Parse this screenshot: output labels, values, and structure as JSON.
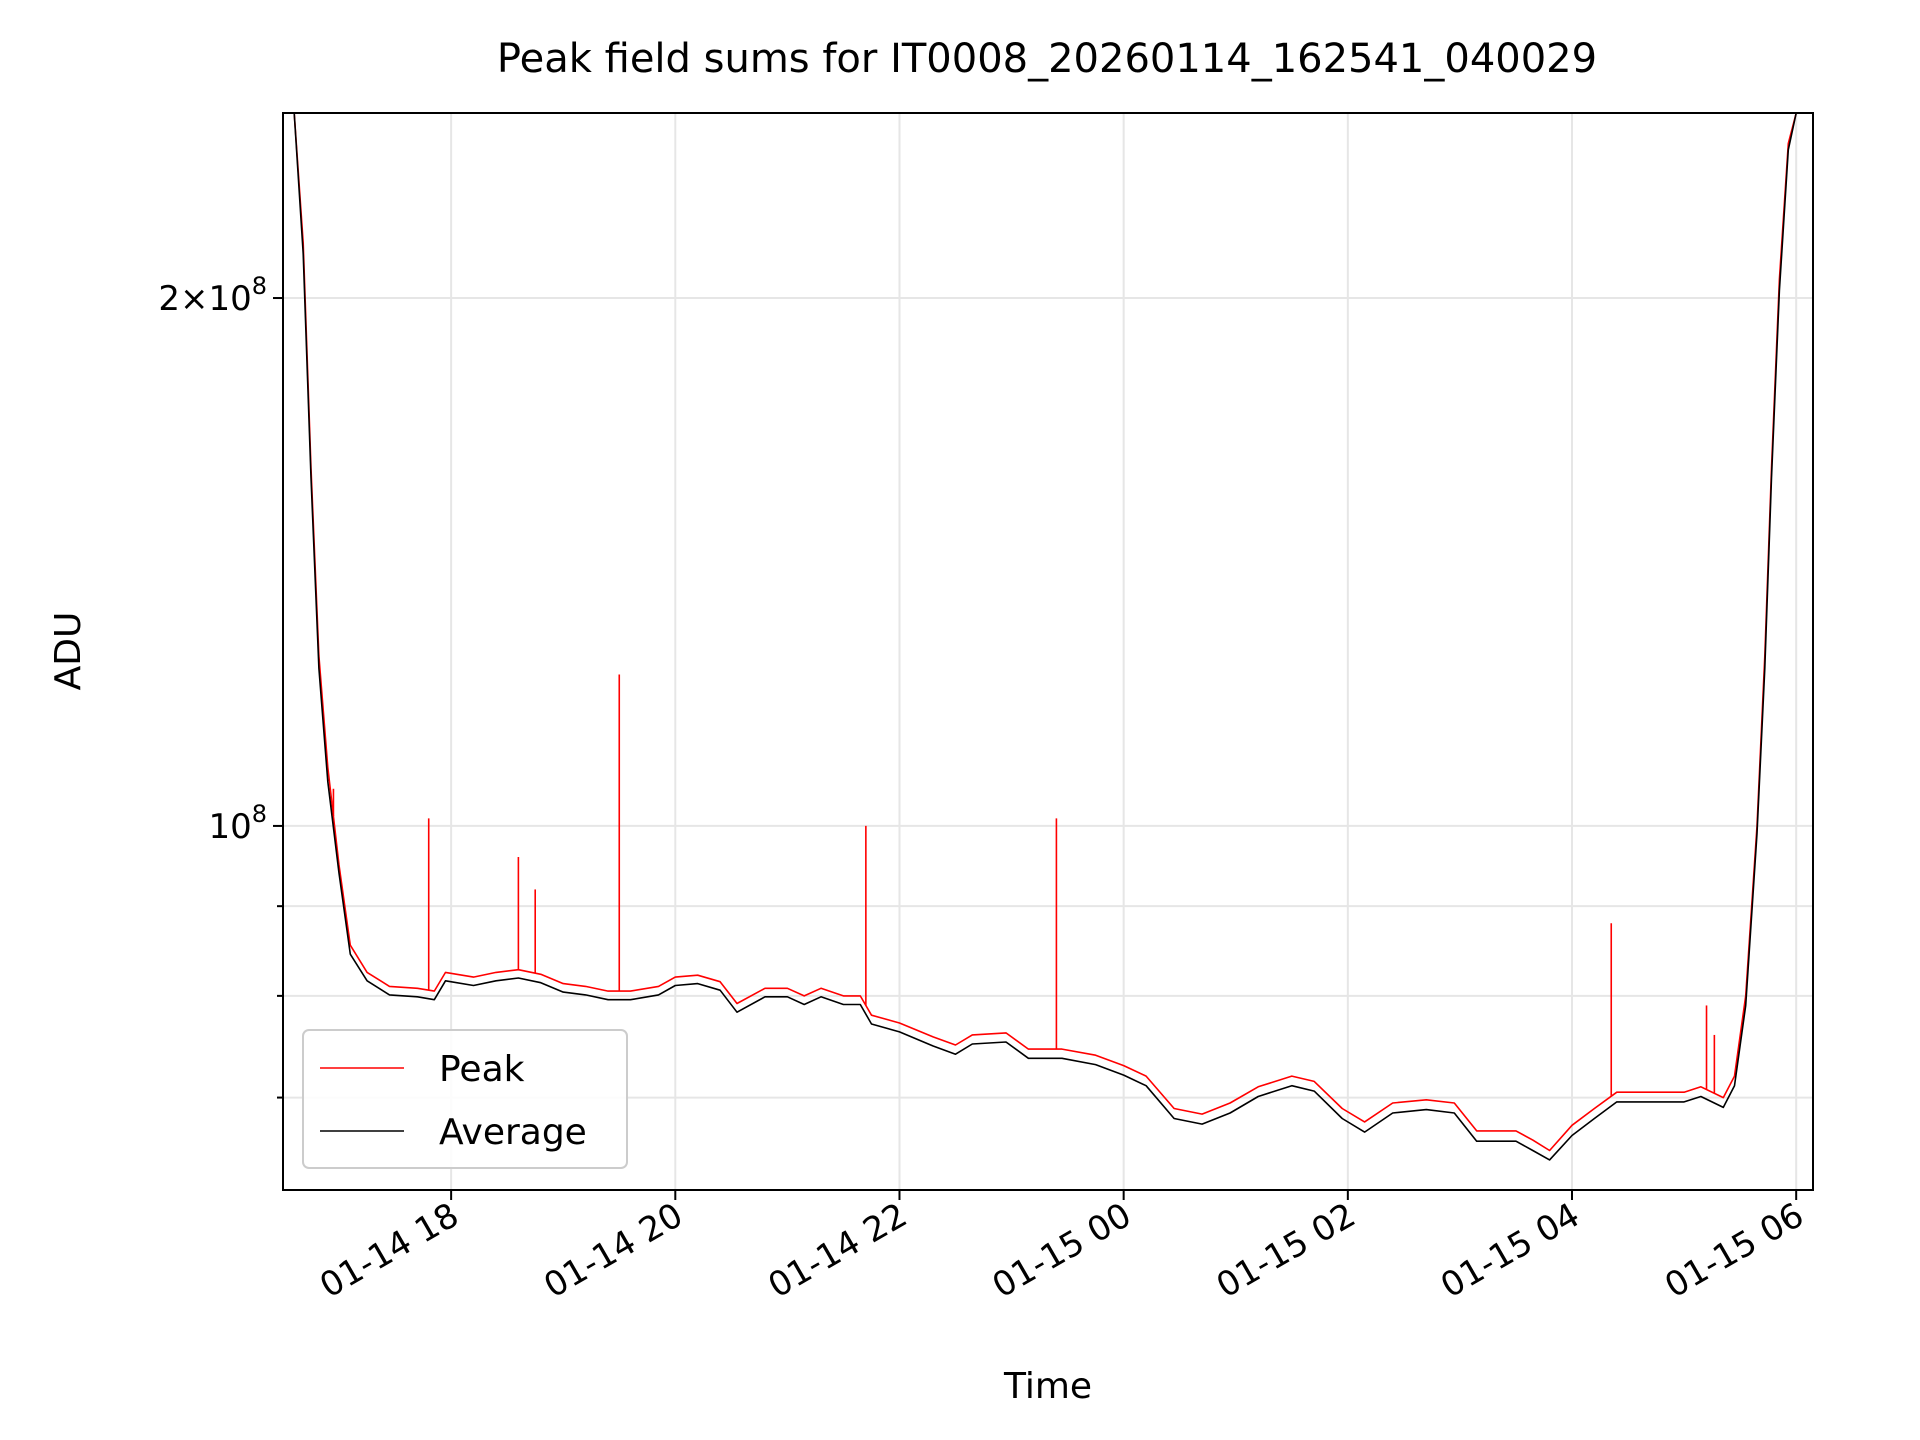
{
  "chart_data": {
    "type": "line",
    "title": "Peak field sums for IT0008_20260114_162541_040029",
    "xlabel": "Time",
    "ylabel": "ADU",
    "yscale": "log",
    "xlim": [
      16.5,
      30.15
    ],
    "ylim": [
      62000000,
      255000000
    ],
    "grid": true,
    "x_ticks": [
      {
        "x": 18,
        "label": "01-14 18"
      },
      {
        "x": 20,
        "label": "01-14 20"
      },
      {
        "x": 22,
        "label": "01-14 22"
      },
      {
        "x": 24,
        "label": "01-15 00"
      },
      {
        "x": 26,
        "label": "01-15 02"
      },
      {
        "x": 28,
        "label": "01-15 04"
      },
      {
        "x": 30,
        "label": "01-15 06"
      }
    ],
    "y_major_ticks": [
      {
        "y": 100000000,
        "label": "10^8"
      },
      {
        "y": 200000000,
        "label": "2×10^8"
      }
    ],
    "y_minor_ticks": [
      70000000,
      80000000,
      90000000
    ],
    "x_unit": "hours since 2026-01-14 00:00",
    "series": [
      {
        "name": "Peak",
        "color": "#ff0000",
        "points": [
          [
            16.6,
            255000000
          ],
          [
            16.68,
            215000000
          ],
          [
            16.75,
            160000000
          ],
          [
            16.82,
            125000000
          ],
          [
            16.9,
            108000000
          ],
          [
            17.0,
            95000000
          ],
          [
            17.1,
            85500000
          ],
          [
            17.25,
            82500000
          ],
          [
            17.45,
            81000000
          ],
          [
            17.7,
            80800000
          ],
          [
            17.85,
            80500000
          ],
          [
            17.95,
            82500000
          ],
          [
            18.2,
            82000000
          ],
          [
            18.4,
            82500000
          ],
          [
            18.6,
            82800000
          ],
          [
            18.8,
            82300000
          ],
          [
            19.0,
            81300000
          ],
          [
            19.2,
            81000000
          ],
          [
            19.4,
            80500000
          ],
          [
            19.6,
            80500000
          ],
          [
            19.85,
            81000000
          ],
          [
            20.0,
            82000000
          ],
          [
            20.2,
            82200000
          ],
          [
            20.4,
            81500000
          ],
          [
            20.55,
            79200000
          ],
          [
            20.8,
            80800000
          ],
          [
            21.0,
            80800000
          ],
          [
            21.15,
            80000000
          ],
          [
            21.3,
            80800000
          ],
          [
            21.5,
            80000000
          ],
          [
            21.65,
            80000000
          ],
          [
            21.75,
            78000000
          ],
          [
            22.0,
            77200000
          ],
          [
            22.3,
            75800000
          ],
          [
            22.5,
            75000000
          ],
          [
            22.65,
            76000000
          ],
          [
            22.95,
            76200000
          ],
          [
            23.15,
            74600000
          ],
          [
            23.45,
            74600000
          ],
          [
            23.75,
            74000000
          ],
          [
            24.0,
            73000000
          ],
          [
            24.2,
            72000000
          ],
          [
            24.45,
            69000000
          ],
          [
            24.7,
            68500000
          ],
          [
            24.95,
            69500000
          ],
          [
            25.2,
            71000000
          ],
          [
            25.5,
            72000000
          ],
          [
            25.7,
            71500000
          ],
          [
            25.95,
            69000000
          ],
          [
            26.15,
            67800000
          ],
          [
            26.4,
            69500000
          ],
          [
            26.7,
            69800000
          ],
          [
            26.95,
            69500000
          ],
          [
            27.15,
            67000000
          ],
          [
            27.5,
            67000000
          ],
          [
            27.65,
            66200000
          ],
          [
            27.8,
            65300000
          ],
          [
            28.0,
            67500000
          ],
          [
            28.2,
            69000000
          ],
          [
            28.4,
            70500000
          ],
          [
            28.7,
            70500000
          ],
          [
            29.0,
            70500000
          ],
          [
            29.15,
            71000000
          ],
          [
            29.35,
            70000000
          ],
          [
            29.45,
            72000000
          ],
          [
            29.55,
            80000000
          ],
          [
            29.65,
            100000000
          ],
          [
            29.72,
            125000000
          ],
          [
            29.78,
            160000000
          ],
          [
            29.85,
            205000000
          ],
          [
            29.93,
            245000000
          ],
          [
            30.0,
            255000000
          ]
        ]
      },
      {
        "name": "Average",
        "color": "#000000",
        "points": [
          [
            16.6,
            255000000
          ],
          [
            16.68,
            212000000
          ],
          [
            16.75,
            158000000
          ],
          [
            16.82,
            123000000
          ],
          [
            16.9,
            106000000
          ],
          [
            17.0,
            94000000
          ],
          [
            17.1,
            84500000
          ],
          [
            17.25,
            81600000
          ],
          [
            17.45,
            80100000
          ],
          [
            17.7,
            79900000
          ],
          [
            17.85,
            79600000
          ],
          [
            17.95,
            81600000
          ],
          [
            18.2,
            81100000
          ],
          [
            18.4,
            81600000
          ],
          [
            18.6,
            81900000
          ],
          [
            18.8,
            81400000
          ],
          [
            19.0,
            80400000
          ],
          [
            19.2,
            80100000
          ],
          [
            19.4,
            79600000
          ],
          [
            19.6,
            79600000
          ],
          [
            19.85,
            80100000
          ],
          [
            20.0,
            81100000
          ],
          [
            20.2,
            81300000
          ],
          [
            20.4,
            80600000
          ],
          [
            20.55,
            78300000
          ],
          [
            20.8,
            79900000
          ],
          [
            21.0,
            79900000
          ],
          [
            21.15,
            79100000
          ],
          [
            21.3,
            79900000
          ],
          [
            21.5,
            79100000
          ],
          [
            21.65,
            79100000
          ],
          [
            21.75,
            77100000
          ],
          [
            22.0,
            76300000
          ],
          [
            22.3,
            74900000
          ],
          [
            22.5,
            74100000
          ],
          [
            22.65,
            75100000
          ],
          [
            22.95,
            75300000
          ],
          [
            23.15,
            73700000
          ],
          [
            23.45,
            73700000
          ],
          [
            23.75,
            73100000
          ],
          [
            24.0,
            72100000
          ],
          [
            24.2,
            71100000
          ],
          [
            24.45,
            68100000
          ],
          [
            24.7,
            67600000
          ],
          [
            24.95,
            68600000
          ],
          [
            25.2,
            70100000
          ],
          [
            25.5,
            71100000
          ],
          [
            25.7,
            70600000
          ],
          [
            25.95,
            68100000
          ],
          [
            26.15,
            66900000
          ],
          [
            26.4,
            68600000
          ],
          [
            26.7,
            68900000
          ],
          [
            26.95,
            68600000
          ],
          [
            27.15,
            66100000
          ],
          [
            27.5,
            66100000
          ],
          [
            27.65,
            65300000
          ],
          [
            27.8,
            64500000
          ],
          [
            28.0,
            66600000
          ],
          [
            28.2,
            68100000
          ],
          [
            28.4,
            69600000
          ],
          [
            28.7,
            69600000
          ],
          [
            29.0,
            69600000
          ],
          [
            29.15,
            70100000
          ],
          [
            29.35,
            69100000
          ],
          [
            29.45,
            71100000
          ],
          [
            29.55,
            79000000
          ],
          [
            29.65,
            99000000
          ],
          [
            29.72,
            123000000
          ],
          [
            29.78,
            158000000
          ],
          [
            29.85,
            202000000
          ],
          [
            29.93,
            243000000
          ],
          [
            30.0,
            255000000
          ]
        ]
      }
    ],
    "peak_spikes": [
      [
        16.95,
        105000000
      ],
      [
        17.8,
        101000000
      ],
      [
        18.6,
        96000000
      ],
      [
        18.75,
        92000000
      ],
      [
        19.5,
        122000000
      ],
      [
        21.7,
        100000000
      ],
      [
        23.4,
        101000000
      ],
      [
        28.35,
        88000000
      ],
      [
        29.2,
        79000000
      ],
      [
        29.27,
        76000000
      ]
    ],
    "legend": {
      "position": "lower-left",
      "entries": [
        {
          "label": "Peak",
          "color": "#ff0000"
        },
        {
          "label": "Average",
          "color": "#000000"
        }
      ]
    }
  }
}
